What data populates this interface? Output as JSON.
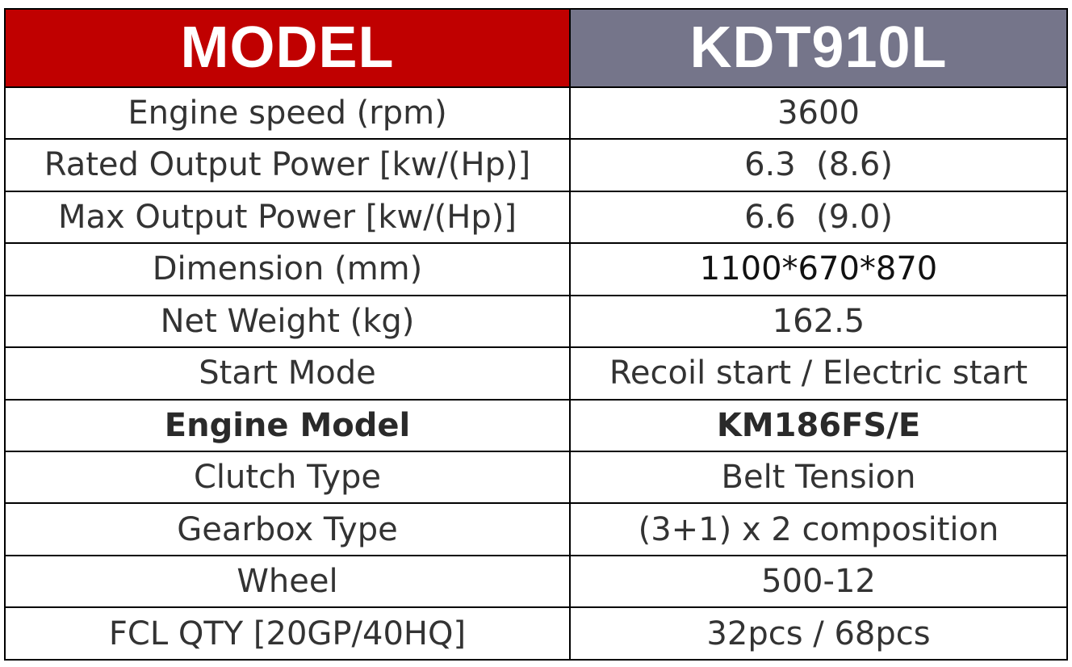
{
  "header": {
    "label": "MODEL",
    "value": "KDT910L"
  },
  "colors": {
    "header_label_bg": "#c00000",
    "header_value_bg": "#75758a",
    "border": "#000000",
    "text": "#333333"
  },
  "rows": [
    {
      "label": "Engine speed (rpm)",
      "value": "3600"
    },
    {
      "label": "Rated Output Power [kw/(Hp)]",
      "value": "6.3  (8.6)"
    },
    {
      "label": "Max Output Power [kw/(Hp)]",
      "value": "6.6  (9.0)"
    },
    {
      "label": "Dimension (mm)",
      "value": "1100*670*870"
    },
    {
      "label": "Net Weight (kg)",
      "value": "162.5"
    },
    {
      "label": "Start Mode",
      "value": "Recoil start / Electric start"
    },
    {
      "label": "Engine Model",
      "value": "KM186FS/E"
    },
    {
      "label": "Clutch Type",
      "value": "Belt Tension"
    },
    {
      "label": "Gearbox Type",
      "value": "(3+1) x 2 composition"
    },
    {
      "label": "Wheel",
      "value": "500-12"
    },
    {
      "label": "FCL QTY [20GP/40HQ]",
      "value": "32pcs / 68pcs"
    }
  ]
}
